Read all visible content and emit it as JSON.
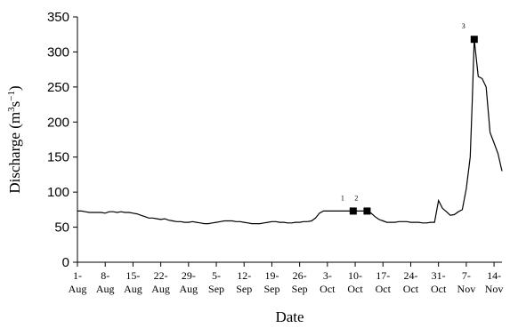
{
  "chart_data": {
    "type": "line",
    "title": "",
    "xlabel": "Date",
    "ylabel_main": "Discharge (m",
    "ylabel_sup1": "3",
    "ylabel_mid": "s",
    "ylabel_sup2": "−1",
    "ylabel_end": ")",
    "ylim": [
      0,
      350
    ],
    "yticks": [
      "0",
      "50",
      "100",
      "150",
      "200",
      "250",
      "300",
      "350"
    ],
    "xlim": [
      0,
      107
    ],
    "xticks": [
      {
        "day": 0,
        "line1": "1-",
        "line2": "Aug"
      },
      {
        "day": 7,
        "line1": "8-",
        "line2": "Aug"
      },
      {
        "day": 14,
        "line1": "15-",
        "line2": "Aug"
      },
      {
        "day": 21,
        "line1": "22-",
        "line2": "Aug"
      },
      {
        "day": 28,
        "line1": "29-",
        "line2": "Aug"
      },
      {
        "day": 35,
        "line1": "5-",
        "line2": "Sep"
      },
      {
        "day": 42,
        "line1": "12-",
        "line2": "Sep"
      },
      {
        "day": 49,
        "line1": "19-",
        "line2": "Sep"
      },
      {
        "day": 56,
        "line1": "26-",
        "line2": "Sep"
      },
      {
        "day": 63,
        "line1": "3-",
        "line2": "Oct"
      },
      {
        "day": 70,
        "line1": "10-",
        "line2": "Oct"
      },
      {
        "day": 77,
        "line1": "17-",
        "line2": "Oct"
      },
      {
        "day": 84,
        "line1": "24-",
        "line2": "Oct"
      },
      {
        "day": 91,
        "line1": "31-",
        "line2": "Oct"
      },
      {
        "day": 98,
        "line1": "7-",
        "line2": "Nov"
      },
      {
        "day": 105,
        "line1": "14-",
        "line2": "Nov"
      }
    ],
    "series": [
      {
        "points": [
          [
            0,
            73
          ],
          [
            1,
            73
          ],
          [
            2,
            72
          ],
          [
            3,
            71
          ],
          [
            4,
            71
          ],
          [
            5,
            71
          ],
          [
            6,
            71
          ],
          [
            7,
            70
          ],
          [
            8,
            72
          ],
          [
            9,
            72
          ],
          [
            10,
            71
          ],
          [
            11,
            72
          ],
          [
            12,
            71
          ],
          [
            13,
            71
          ],
          [
            14,
            70
          ],
          [
            15,
            69
          ],
          [
            16,
            67
          ],
          [
            17,
            65
          ],
          [
            18,
            63
          ],
          [
            19,
            63
          ],
          [
            20,
            62
          ],
          [
            21,
            61
          ],
          [
            22,
            62
          ],
          [
            23,
            60
          ],
          [
            24,
            59
          ],
          [
            25,
            58
          ],
          [
            26,
            58
          ],
          [
            27,
            57
          ],
          [
            28,
            57
          ],
          [
            29,
            58
          ],
          [
            30,
            57
          ],
          [
            31,
            56
          ],
          [
            32,
            55
          ],
          [
            33,
            55
          ],
          [
            34,
            56
          ],
          [
            35,
            57
          ],
          [
            36,
            58
          ],
          [
            37,
            59
          ],
          [
            38,
            59
          ],
          [
            39,
            59
          ],
          [
            40,
            58
          ],
          [
            41,
            58
          ],
          [
            42,
            57
          ],
          [
            43,
            56
          ],
          [
            44,
            55
          ],
          [
            45,
            55
          ],
          [
            46,
            55
          ],
          [
            47,
            56
          ],
          [
            48,
            57
          ],
          [
            49,
            58
          ],
          [
            50,
            58
          ],
          [
            51,
            57
          ],
          [
            52,
            57
          ],
          [
            53,
            56
          ],
          [
            54,
            56
          ],
          [
            55,
            57
          ],
          [
            56,
            57
          ],
          [
            57,
            58
          ],
          [
            58,
            58
          ],
          [
            59,
            59
          ],
          [
            60,
            63
          ],
          [
            61,
            70
          ],
          [
            62,
            73
          ],
          [
            63,
            73
          ],
          [
            64,
            73
          ],
          [
            65,
            73
          ],
          [
            66,
            73
          ],
          [
            67,
            73
          ],
          [
            68,
            73
          ],
          [
            69,
            73
          ],
          [
            70,
            73
          ],
          [
            71,
            73
          ],
          [
            72,
            73
          ],
          [
            73,
            73
          ],
          [
            74,
            70
          ],
          [
            75,
            65
          ],
          [
            76,
            61
          ],
          [
            77,
            59
          ],
          [
            78,
            57
          ],
          [
            79,
            57
          ],
          [
            80,
            57
          ],
          [
            81,
            58
          ],
          [
            82,
            58
          ],
          [
            83,
            58
          ],
          [
            84,
            57
          ],
          [
            85,
            57
          ],
          [
            86,
            57
          ],
          [
            87,
            56
          ],
          [
            88,
            56
          ],
          [
            89,
            57
          ],
          [
            90,
            57
          ],
          [
            91,
            88
          ],
          [
            92,
            77
          ],
          [
            93,
            72
          ],
          [
            94,
            67
          ],
          [
            95,
            68
          ],
          [
            96,
            72
          ],
          [
            97,
            75
          ],
          [
            98,
            105
          ],
          [
            99,
            150
          ],
          [
            99.5,
            230
          ],
          [
            100,
            318
          ],
          [
            101,
            265
          ],
          [
            102,
            262
          ],
          [
            103,
            250
          ],
          [
            104,
            185
          ],
          [
            105,
            170
          ],
          [
            106,
            155
          ],
          [
            107,
            130
          ]
        ]
      }
    ],
    "markers": [
      {
        "label": "1",
        "day": 69.5,
        "value": 73
      },
      {
        "label": "2",
        "day": 73,
        "value": 73
      },
      {
        "label": "3",
        "day": 100,
        "value": 318
      }
    ]
  }
}
